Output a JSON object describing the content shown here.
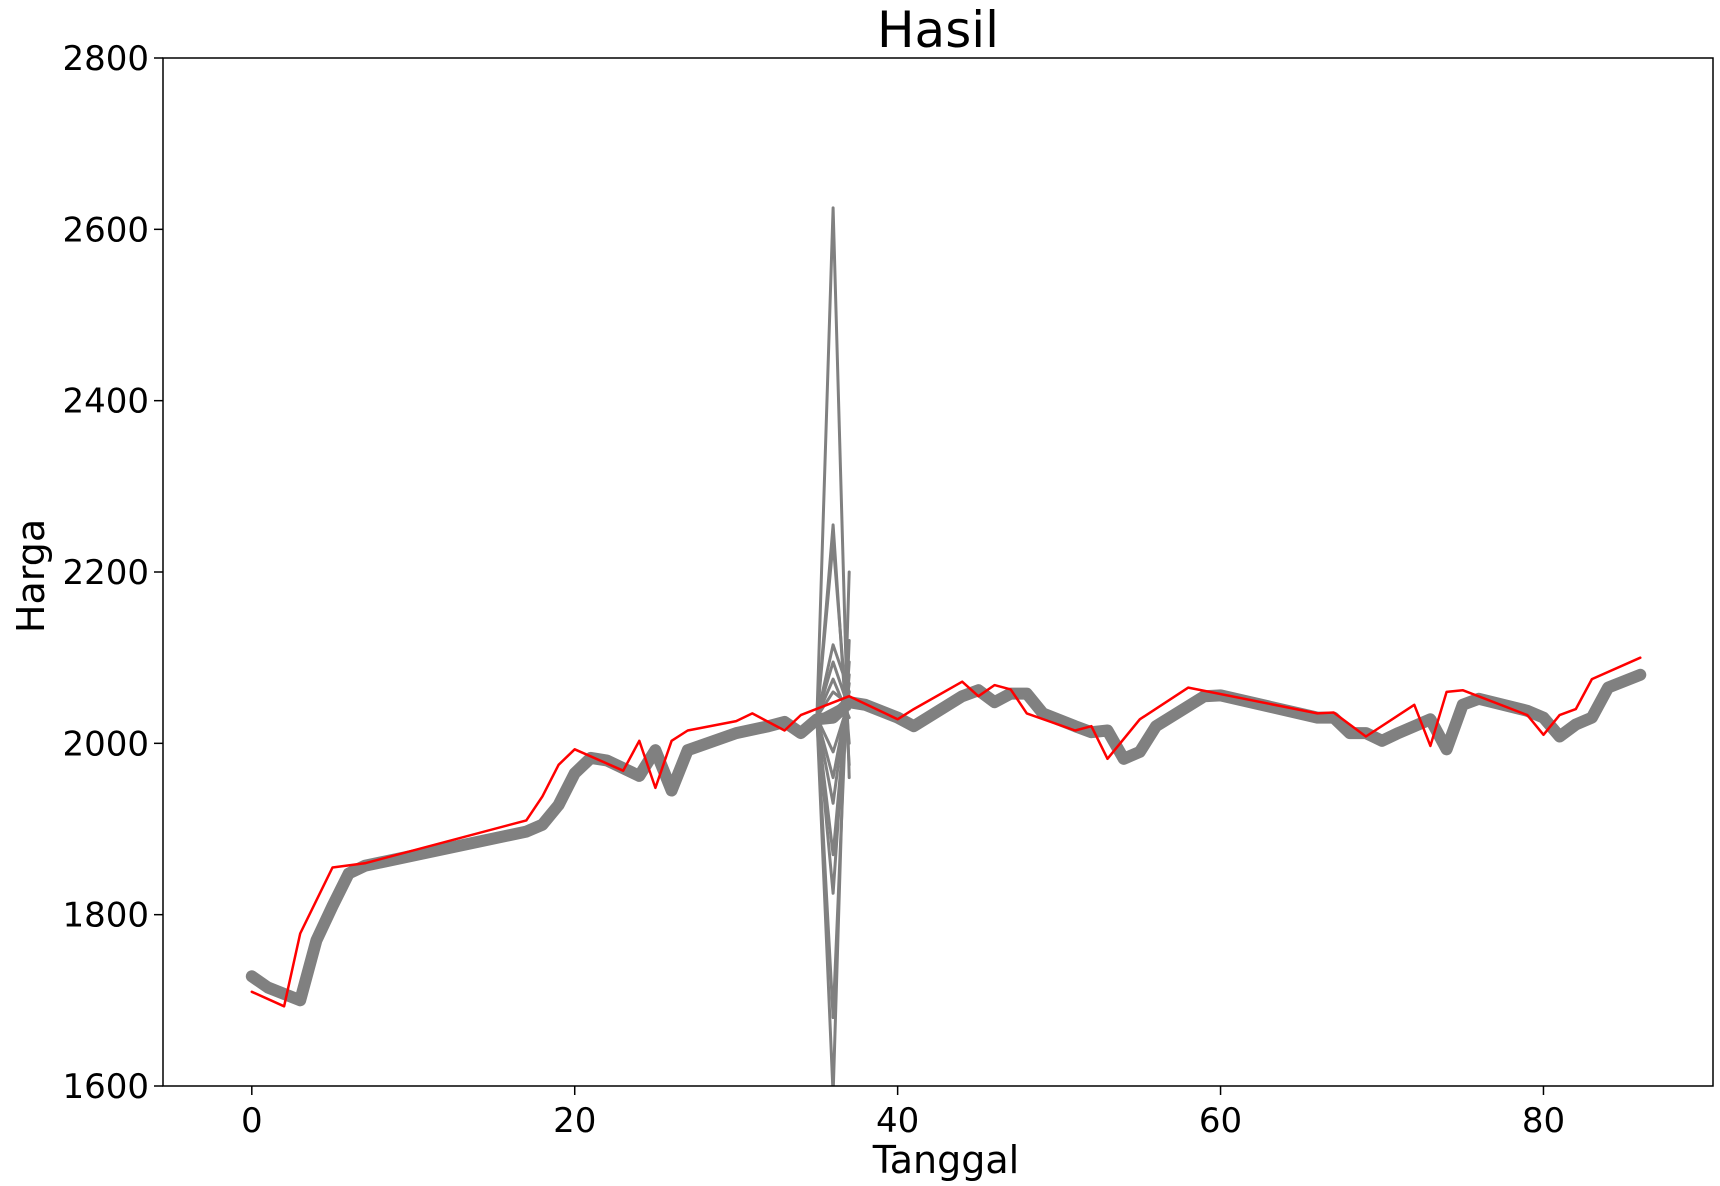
{
  "chart_data": {
    "type": "line",
    "title": "Hasil",
    "xlabel": "Tanggal",
    "ylabel": "Harga",
    "xlim": [
      -5.5,
      90.5
    ],
    "ylim": [
      1600,
      2800
    ],
    "xticks": [
      0,
      20,
      40,
      60,
      80
    ],
    "yticks": [
      1600,
      1800,
      2000,
      2200,
      2400,
      2600,
      2800
    ],
    "grid": false,
    "legend": false,
    "colors": {
      "actual": "#ff0000",
      "predicted": "#808080"
    },
    "series": [
      {
        "role": "actual",
        "x": [
          0,
          2,
          3,
          5,
          7,
          17,
          18,
          19,
          20,
          23,
          24,
          25,
          26,
          27,
          30,
          31,
          33,
          34,
          37,
          40,
          41,
          44,
          45,
          46,
          47,
          48,
          51,
          52,
          53,
          55,
          58,
          66,
          67,
          69,
          72,
          73,
          74,
          75,
          79,
          80,
          81,
          82,
          83,
          86
        ],
        "values": [
          1710,
          1693,
          1778,
          1855,
          1860,
          1910,
          1938,
          1975,
          1993,
          1968,
          2003,
          1948,
          2003,
          2015,
          2026,
          2035,
          2015,
          2033,
          2055,
          2028,
          2040,
          2072,
          2055,
          2068,
          2063,
          2035,
          2015,
          2020,
          1982,
          2028,
          2065,
          2035,
          2036,
          2008,
          2045,
          1997,
          2060,
          2062,
          2033,
          2010,
          2033,
          2040,
          2075,
          2100
        ]
      },
      {
        "role": "predicted",
        "x": [
          0,
          1,
          3,
          4,
          5,
          6,
          7,
          17,
          18,
          19,
          20,
          21,
          22,
          24,
          25,
          26,
          27,
          30,
          32,
          33,
          34,
          35,
          36,
          37,
          38,
          40,
          41,
          44,
          45,
          46,
          47,
          48,
          49,
          51,
          52,
          53,
          54,
          55,
          56,
          59,
          60,
          66,
          67,
          68,
          69,
          70,
          71,
          73,
          74,
          75,
          76,
          79,
          80,
          81,
          82,
          83,
          84,
          86
        ],
        "values": [
          1728,
          1715,
          1700,
          1770,
          1810,
          1848,
          1857,
          1897,
          1905,
          1928,
          1965,
          1983,
          1980,
          1962,
          1992,
          1945,
          1992,
          2012,
          2020,
          2025,
          2012,
          2028,
          2030,
          2048,
          2045,
          2030,
          2020,
          2055,
          2062,
          2048,
          2058,
          2058,
          2035,
          2020,
          2013,
          2015,
          1982,
          1990,
          2020,
          2055,
          2056,
          2030,
          2030,
          2012,
          2012,
          2003,
          2012,
          2028,
          1993,
          2045,
          2052,
          2038,
          2030,
          2008,
          2022,
          2030,
          2065,
          2080
        ]
      },
      {
        "role": "predicted",
        "x": [
          35,
          36,
          37
        ],
        "values": [
          2030,
          2625,
          1960
        ]
      },
      {
        "role": "predicted",
        "x": [
          35,
          36,
          37
        ],
        "values": [
          2030,
          1590,
          2200
        ]
      },
      {
        "role": "predicted",
        "x": [
          35,
          36,
          37
        ],
        "values": [
          2028,
          2255,
          1975
        ]
      },
      {
        "role": "predicted",
        "x": [
          35,
          36,
          37
        ],
        "values": [
          2030,
          1680,
          2120
        ]
      },
      {
        "role": "predicted",
        "x": [
          35,
          36,
          37
        ],
        "values": [
          2028,
          2235,
          2000
        ]
      },
      {
        "role": "predicted",
        "x": [
          35,
          36,
          37
        ],
        "values": [
          2029,
          1825,
          2095
        ]
      },
      {
        "role": "predicted",
        "x": [
          35,
          36,
          37
        ],
        "values": [
          2030,
          2115,
          2060
        ]
      },
      {
        "role": "predicted",
        "x": [
          35,
          36,
          37
        ],
        "values": [
          2030,
          1870,
          2080
        ]
      },
      {
        "role": "predicted",
        "x": [
          35,
          36,
          37
        ],
        "values": [
          2031,
          2095,
          2040
        ]
      },
      {
        "role": "predicted",
        "x": [
          35,
          36,
          37
        ],
        "values": [
          2029,
          1930,
          2070
        ]
      },
      {
        "role": "predicted",
        "x": [
          35,
          36,
          37
        ],
        "values": [
          2031,
          2075,
          2030
        ]
      },
      {
        "role": "predicted",
        "x": [
          35,
          36,
          37
        ],
        "values": [
          2030,
          1960,
          2060
        ]
      },
      {
        "role": "predicted",
        "x": [
          35,
          36,
          37
        ],
        "values": [
          2031,
          2060,
          2045
        ]
      },
      {
        "role": "predicted",
        "x": [
          35,
          36,
          37
        ],
        "values": [
          2030,
          1990,
          2050
        ]
      },
      {
        "role": "predicted",
        "x": [
          35,
          36,
          37
        ],
        "values": [
          2030,
          2040,
          2050
        ]
      }
    ]
  }
}
